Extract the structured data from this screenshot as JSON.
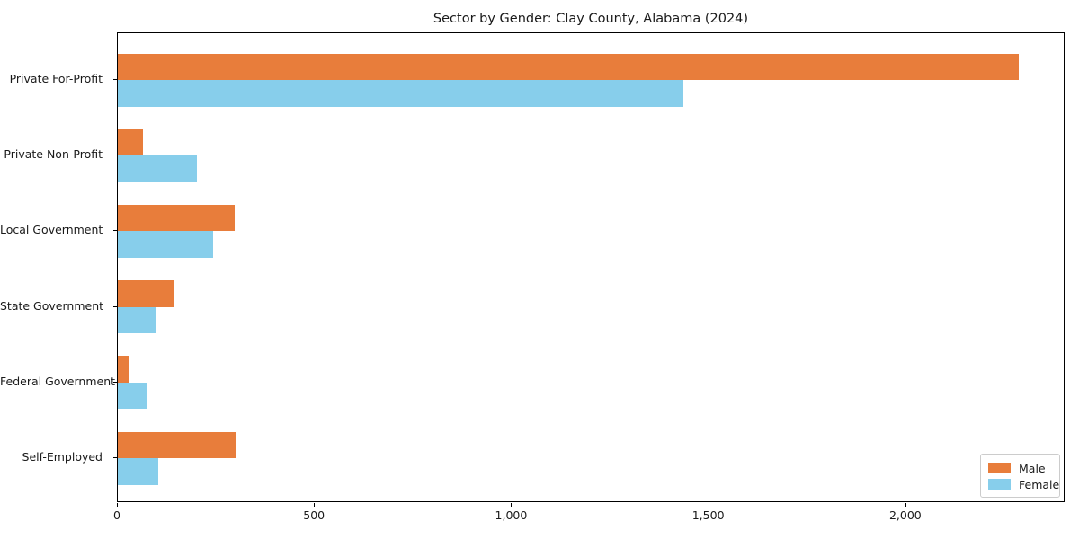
{
  "title": "Sector by Gender: Clay County, Alabama (2024)",
  "colors": {
    "male": "#e87d3b",
    "female": "#87ceeb",
    "spine": "#000000",
    "text": "#1a1a1a",
    "legend_border": "#cccccc",
    "background": "#ffffff"
  },
  "legend": {
    "position": "lower right",
    "entries": [
      {
        "label": "Male",
        "color": "#e87d3b"
      },
      {
        "label": "Female",
        "color": "#87ceeb"
      }
    ]
  },
  "chart_data": {
    "type": "bar",
    "orientation": "horizontal",
    "title": "Sector by Gender: Clay County, Alabama (2024)",
    "categories": [
      "Private For-Profit",
      "Private Non-Profit",
      "Local Government",
      "State Government",
      "Federal Government",
      "Self-Employed"
    ],
    "series": [
      {
        "name": "Male",
        "color": "#e87d3b",
        "values": [
          2290,
          64,
          296,
          141,
          27,
          300
        ]
      },
      {
        "name": "Female",
        "color": "#87ceeb",
        "values": [
          1437,
          202,
          243,
          98,
          73,
          102
        ]
      }
    ],
    "xlabel": "",
    "ylabel": "",
    "xlim": [
      0,
      2404
    ],
    "xticks": [
      0,
      500,
      1000,
      1500,
      2000
    ],
    "xtick_labels": [
      "0",
      "500",
      "1,000",
      "1,500",
      "2,000"
    ],
    "grid": false,
    "legend_position": "lower right"
  }
}
